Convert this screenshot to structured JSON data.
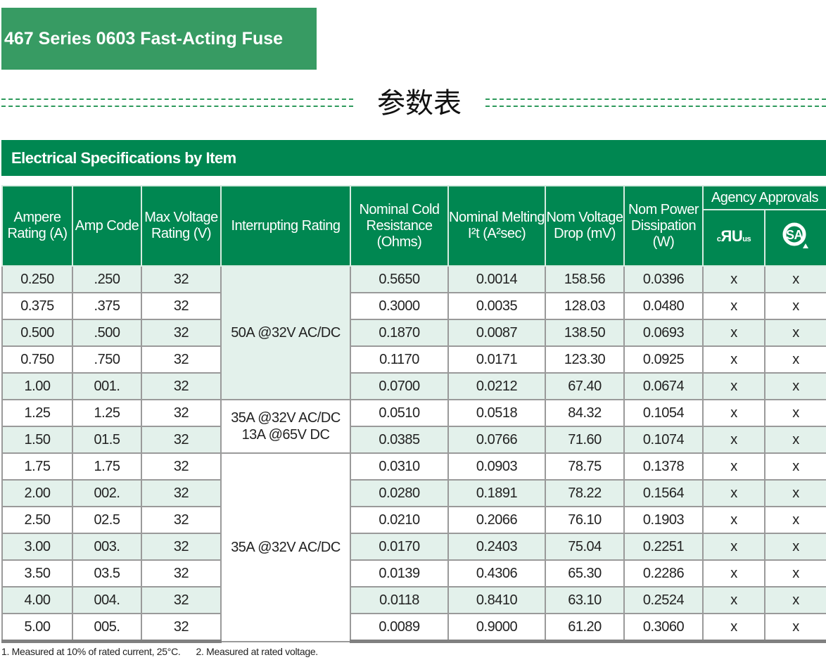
{
  "title": "467 Series 0603 Fast-Acting Fuse",
  "section_title": "参数表",
  "banner": "Electrical Specifications by Item",
  "colors": {
    "header_green": "#008751",
    "title_green": "#379b63",
    "row_light": "#e3f1eb"
  },
  "headers": {
    "ampere_rating": "Ampere Rating (A)",
    "amp_code": "Amp Code",
    "max_voltage": "Max Voltage Rating (V)",
    "interrupting": "Interrupting Rating",
    "cold_resistance": "Nominal Cold Resistance (Ohms)",
    "melting": "Nominal Melting I²t (A²sec)",
    "voltage_drop": "Nom Voltage Drop (mV)",
    "power_dissipation": "Nom Power Dissipation (W)",
    "agency": "Agency Approvals",
    "ul_logo": "cRUus",
    "csa_logo": "CSA"
  },
  "interrupting_groups": [
    {
      "label": "50A @32V AC/DC",
      "rows": 5
    },
    {
      "label": "35A @32V AC/DC\n13A @65V DC",
      "rows": 2
    },
    {
      "label": "35A @32V AC/DC",
      "rows": 7
    }
  ],
  "rows": [
    [
      "0.250",
      ".250",
      "32",
      "0.5650",
      "0.0014",
      "158.56",
      "0.0396",
      "x",
      "x"
    ],
    [
      "0.375",
      ".375",
      "32",
      "0.3000",
      "0.0035",
      "128.03",
      "0.0480",
      "x",
      "x"
    ],
    [
      "0.500",
      ".500",
      "32",
      "0.1870",
      "0.0087",
      "138.50",
      "0.0693",
      "x",
      "x"
    ],
    [
      "0.750",
      ".750",
      "32",
      "0.1170",
      "0.0171",
      "123.30",
      "0.0925",
      "x",
      "x"
    ],
    [
      "1.00",
      "001.",
      "32",
      "0.0700",
      "0.0212",
      "67.40",
      "0.0674",
      "x",
      "x"
    ],
    [
      "1.25",
      "1.25",
      "32",
      "0.0510",
      "0.0518",
      "84.32",
      "0.1054",
      "x",
      "x"
    ],
    [
      "1.50",
      "01.5",
      "32",
      "0.0385",
      "0.0766",
      "71.60",
      "0.1074",
      "x",
      "x"
    ],
    [
      "1.75",
      "1.75",
      "32",
      "0.0310",
      "0.0903",
      "78.75",
      "0.1378",
      "x",
      "x"
    ],
    [
      "2.00",
      "002.",
      "32",
      "0.0280",
      "0.1891",
      "78.22",
      "0.1564",
      "x",
      "x"
    ],
    [
      "2.50",
      "02.5",
      "32",
      "0.0210",
      "0.2066",
      "76.10",
      "0.1903",
      "x",
      "x"
    ],
    [
      "3.00",
      "003.",
      "32",
      "0.0170",
      "0.2403",
      "75.04",
      "0.2251",
      "x",
      "x"
    ],
    [
      "3.50",
      "03.5",
      "32",
      "0.0139",
      "0.4306",
      "65.30",
      "0.2286",
      "x",
      "x"
    ],
    [
      "4.00",
      "004.",
      "32",
      "0.0118",
      "0.8410",
      "63.10",
      "0.2524",
      "x",
      "x"
    ],
    [
      "5.00",
      "005.",
      "32",
      "0.0089",
      "0.9000",
      "61.20",
      "0.3060",
      "x",
      "x"
    ]
  ],
  "footnotes": [
    "1.  Measured at 10% of rated current, 25°C.",
    "2. Measured at rated voltage."
  ]
}
